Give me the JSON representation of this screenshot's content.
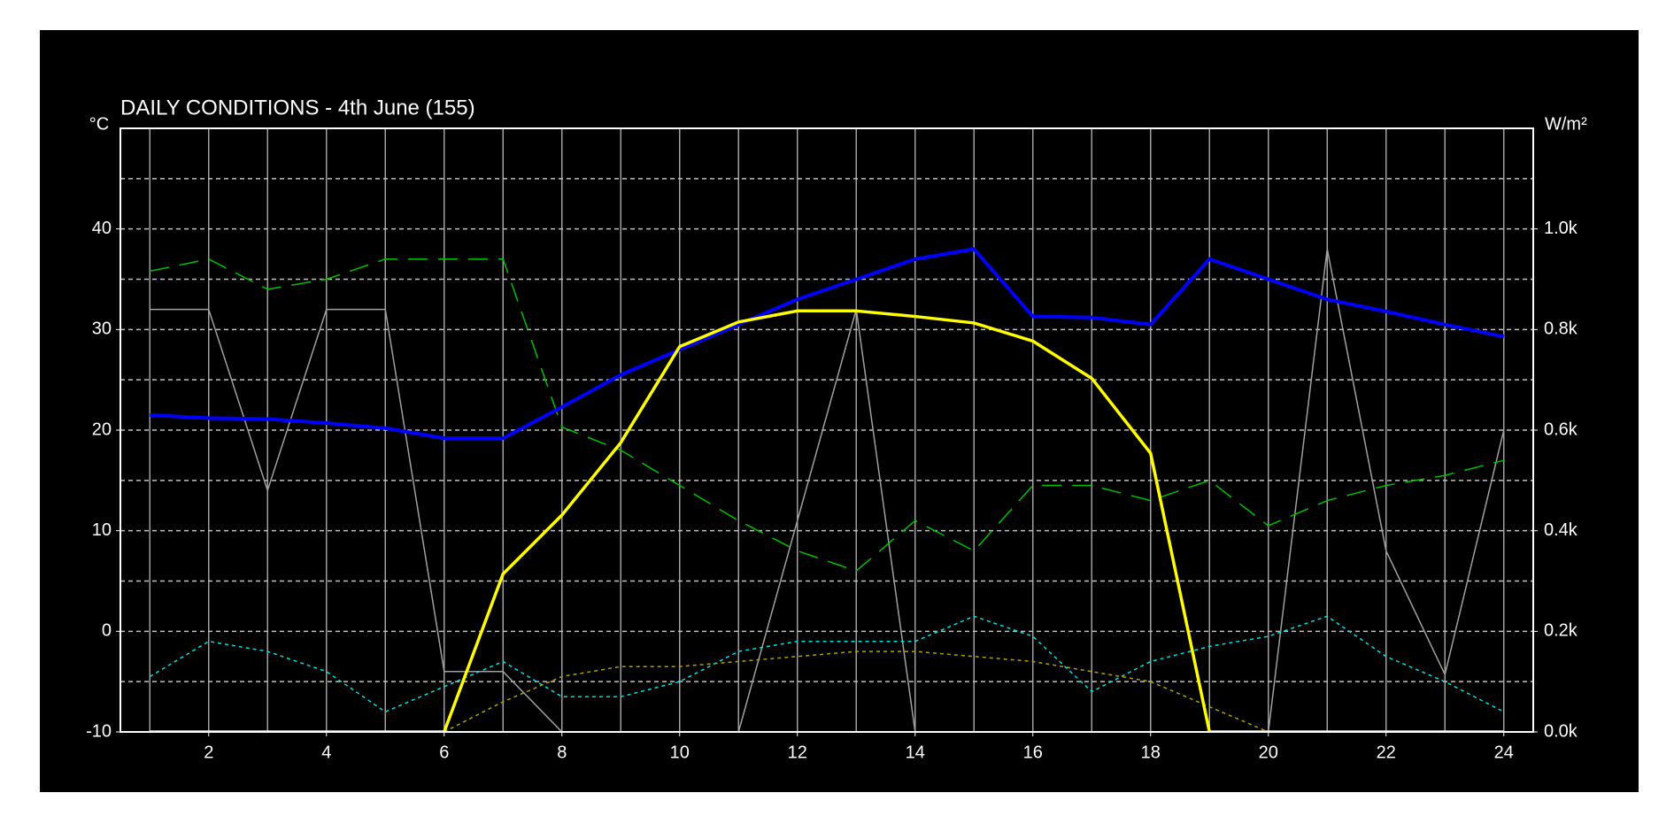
{
  "chart_data": {
    "type": "line",
    "title": "DAILY CONDITIONS - 4th June (155)",
    "y_label": "°C",
    "y2_label": "W/m²",
    "xlim": [
      0.5,
      24.5
    ],
    "xticks": [
      2,
      4,
      6,
      8,
      10,
      12,
      14,
      16,
      18,
      20,
      22,
      24
    ],
    "xminorticks": [
      1,
      2,
      3,
      4,
      5,
      6,
      7,
      8,
      9,
      10,
      11,
      12,
      13,
      14,
      15,
      16,
      17,
      18,
      19,
      20,
      21,
      22,
      23,
      24
    ],
    "ylim": [
      -10,
      50
    ],
    "yticks": [
      -10,
      0,
      10,
      20,
      30,
      40
    ],
    "yminorticks": [
      -5,
      0,
      5,
      10,
      15,
      20,
      25,
      30,
      35,
      40,
      45
    ],
    "y2lim": [
      0,
      1200
    ],
    "y2ticks": [
      {
        "value": 0,
        "label": "0.0k"
      },
      {
        "value": 200,
        "label": "0.2k"
      },
      {
        "value": 400,
        "label": "0.4k"
      },
      {
        "value": 600,
        "label": "0.6k"
      },
      {
        "value": 800,
        "label": "0.8k"
      },
      {
        "value": 1000,
        "label": "1.0k"
      }
    ],
    "grid": true,
    "x": [
      1,
      2,
      3,
      4,
      5,
      6,
      7,
      8,
      9,
      10,
      11,
      12,
      13,
      14,
      15,
      16,
      17,
      18,
      19,
      20,
      21,
      22,
      23,
      24
    ],
    "series": [
      {
        "color": "#a0a0a0",
        "style": "solid",
        "width": 1.5,
        "values": [
          32,
          32,
          14,
          32,
          32,
          -4,
          -4,
          -10,
          -10,
          -10,
          -10,
          11,
          32,
          -10,
          -10,
          -10,
          -10,
          -10,
          -10,
          -10,
          38,
          8,
          -4.3,
          20
        ]
      },
      {
        "color": "#00c000",
        "style": "dashed",
        "width": 1.5,
        "values": [
          35.8,
          37,
          34,
          35,
          37,
          37,
          37,
          20.3,
          18,
          14.5,
          11,
          8,
          6,
          11,
          8,
          14.5,
          14.5,
          13,
          15,
          10.5,
          13,
          14.5,
          15.5,
          17
        ]
      },
      {
        "color": "#00e0e0",
        "style": "dotted",
        "width": 1.5,
        "values": [
          -4.5,
          -1,
          -2,
          -4,
          -8,
          -5.5,
          -3,
          -6.5,
          -6.5,
          -5,
          -2,
          -1,
          -1,
          -1,
          1.5,
          -0.5,
          -6,
          -3,
          -1.5,
          -0.5,
          1.5,
          -2.5,
          -5,
          -8
        ]
      },
      {
        "color": "#b0a000",
        "style": "dotted",
        "width": 1.5,
        "values": [
          null,
          null,
          null,
          null,
          null,
          -10,
          -7,
          -4.5,
          -3.5,
          -3.5,
          -3,
          -2.5,
          -2,
          -2,
          -2.5,
          -3,
          -4,
          -5,
          -7.5,
          -10,
          null,
          null,
          null,
          null
        ]
      },
      {
        "color": "#0000ff",
        "style": "solid",
        "width": 4,
        "values": [
          21.5,
          21.2,
          21.1,
          20.7,
          20.2,
          19.2,
          19.2,
          22.3,
          25.5,
          28,
          30.5,
          33,
          35,
          37,
          38,
          31.3,
          31.2,
          30.5,
          37,
          35,
          33,
          31.8,
          30.5,
          29.3
        ]
      },
      {
        "color": "#ffff00",
        "style": "solid",
        "width": 3.5,
        "axis": "y2",
        "values": [
          0,
          0,
          0,
          0,
          0,
          0,
          314,
          431,
          575,
          766,
          815,
          837,
          837,
          826,
          813,
          777,
          703,
          554,
          0,
          0,
          0,
          0,
          0,
          0
        ]
      }
    ]
  }
}
